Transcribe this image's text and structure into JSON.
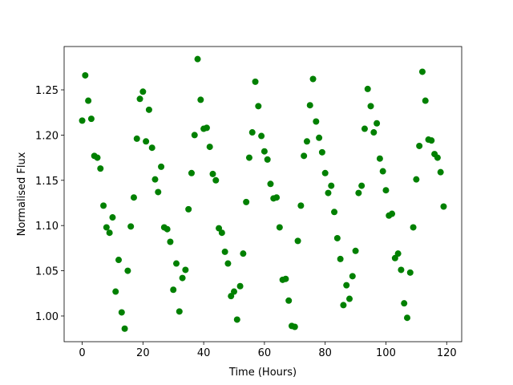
{
  "chart_data": {
    "type": "scatter",
    "x_label": "Time (Hours)",
    "y_label": "Normalised Flux",
    "color": "#008000",
    "xlim": [
      -5.95,
      124.95
    ],
    "ylim": [
      0.9716,
      1.2979
    ],
    "xticks": [
      0,
      20,
      40,
      60,
      80,
      100,
      120
    ],
    "yticks": [
      {
        "value": 1,
        "label": "1.00"
      },
      1.05,
      {
        "value": 1.1,
        "label": "1.10"
      },
      1.15,
      {
        "value": 1.2,
        "label": "1.20"
      },
      1.25
    ],
    "x": [
      0,
      1,
      2,
      3,
      4,
      5,
      6,
      7,
      8,
      9,
      10,
      11,
      12,
      13,
      14,
      15,
      16,
      17,
      18,
      19,
      20,
      21,
      22,
      23,
      24,
      25,
      26,
      27,
      28,
      29,
      30,
      31,
      32,
      33,
      34,
      35,
      36,
      37,
      38,
      39,
      40,
      41,
      42,
      43,
      44,
      45,
      46,
      47,
      48,
      49,
      50,
      51,
      52,
      53,
      54,
      55,
      56,
      57,
      58,
      59,
      60,
      61,
      62,
      63,
      64,
      65,
      66,
      67,
      68,
      69,
      70,
      71,
      72,
      73,
      74,
      75,
      76,
      77,
      78,
      79,
      80,
      81,
      82,
      83,
      84,
      85,
      86,
      87,
      88,
      89,
      90,
      91,
      92,
      93,
      94,
      95,
      96,
      97,
      98,
      99,
      100,
      101,
      102,
      103,
      104,
      105,
      106,
      107,
      108,
      109,
      110,
      111,
      112,
      113,
      114,
      115,
      116,
      117,
      118,
      119
    ],
    "values": [
      1.216,
      1.266,
      1.238,
      1.218,
      1.177,
      1.175,
      1.163,
      1.122,
      1.098,
      1.092,
      1.109,
      1.027,
      1.062,
      1.004,
      0.986,
      1.05,
      1.099,
      1.131,
      1.196,
      1.24,
      1.248,
      1.193,
      1.228,
      1.186,
      1.151,
      1.137,
      1.165,
      1.098,
      1.096,
      1.082,
      1.029,
      1.058,
      1.005,
      1.042,
      1.051,
      1.118,
      1.158,
      1.2,
      1.284,
      1.239,
      1.207,
      1.208,
      1.187,
      1.157,
      1.15,
      1.097,
      1.092,
      1.071,
      1.058,
      1.022,
      1.027,
      0.996,
      1.033,
      1.069,
      1.126,
      1.175,
      1.203,
      1.259,
      1.232,
      1.199,
      1.182,
      1.173,
      1.146,
      1.13,
      1.131,
      1.098,
      1.04,
      1.041,
      1.017,
      0.989,
      0.988,
      1.083,
      1.122,
      1.177,
      1.193,
      1.233,
      1.262,
      1.215,
      1.197,
      1.181,
      1.158,
      1.136,
      1.144,
      1.115,
      1.086,
      1.063,
      1.012,
      1.034,
      1.019,
      1.044,
      1.072,
      1.136,
      1.144,
      1.207,
      1.251,
      1.232,
      1.203,
      1.213,
      1.174,
      1.16,
      1.139,
      1.111,
      1.113,
      1.064,
      1.069,
      1.051,
      1.014,
      0.998,
      1.048,
      1.098,
      1.151,
      1.188,
      1.27,
      1.238,
      1.195,
      1.194,
      1.179,
      1.175,
      1.159,
      1.121
    ]
  }
}
